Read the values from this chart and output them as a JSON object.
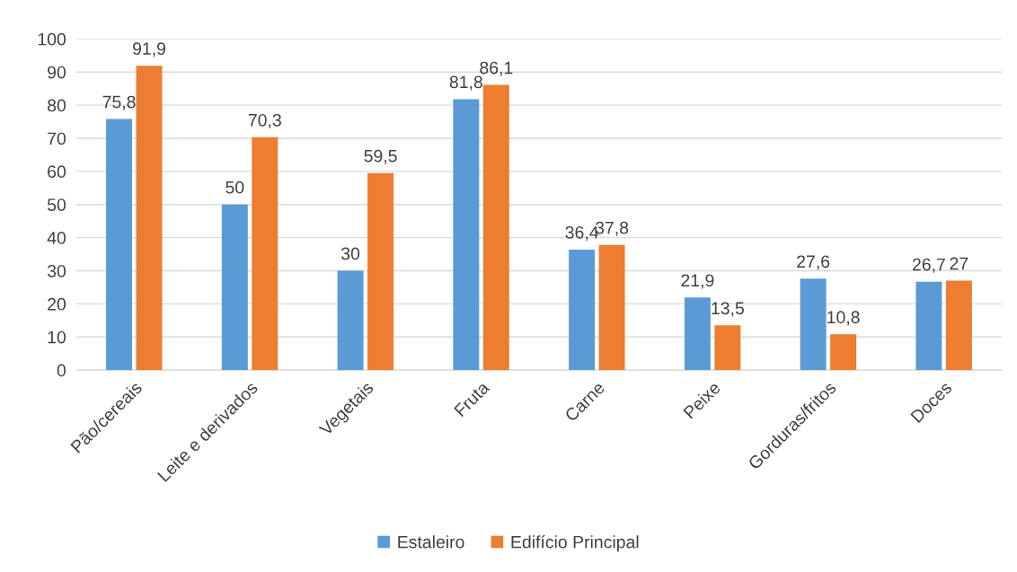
{
  "chart_data": {
    "type": "bar",
    "categories": [
      "Pão/cereais",
      "Leite e derivados",
      "Vegetais",
      "Fruta",
      "Carne",
      "Peixe",
      "Gorduras/fritos",
      "Doces"
    ],
    "series": [
      {
        "name": "Estaleiro",
        "color": "#5b9bd5",
        "values": [
          75.8,
          50,
          30,
          81.8,
          36.4,
          21.9,
          27.6,
          26.7
        ],
        "value_labels": [
          "75,8",
          "50",
          "30",
          "81,8",
          "36,4",
          "21,9",
          "27,6",
          "26,7"
        ]
      },
      {
        "name": "Edifício Principal",
        "color": "#ed7d31",
        "values": [
          91.9,
          70.3,
          59.5,
          86.1,
          37.8,
          13.5,
          10.8,
          27
        ],
        "value_labels": [
          "91,9",
          "70,3",
          "59,5",
          "86,1",
          "37,8",
          "13,5",
          "10,8",
          "27"
        ]
      }
    ],
    "ylim": [
      0,
      100
    ],
    "yticks": [
      0,
      10,
      20,
      30,
      40,
      50,
      60,
      70,
      80,
      90,
      100
    ],
    "grid": "y",
    "legend": "bottom"
  }
}
